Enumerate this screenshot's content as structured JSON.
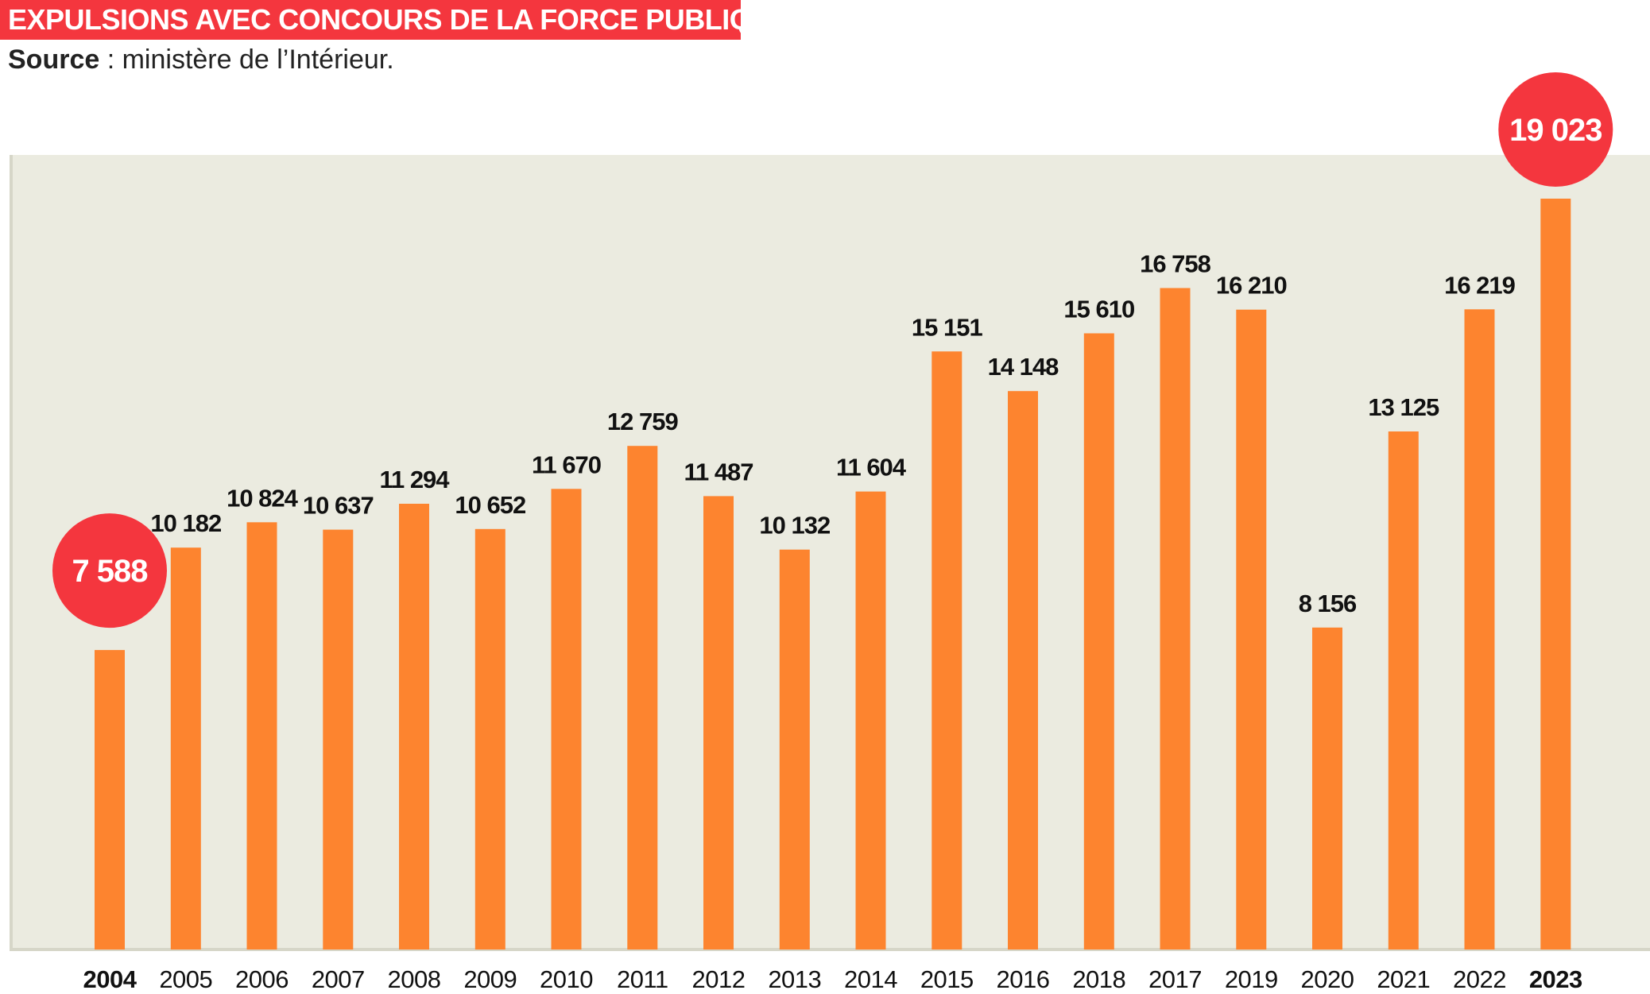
{
  "title": "EXPULSIONS AVEC CONCOURS DE LA FORCE PUBLIQUE",
  "source_label": "Source",
  "source_sep": " : ",
  "source_text": "ministère de l’Intérieur.",
  "colors": {
    "title_bg": "#f4363e",
    "bar": "#fd842f",
    "plot_bg": "#ebebe0",
    "highlight_circle": "#f4363e"
  },
  "chart_data": {
    "type": "bar",
    "categories": [
      "2004",
      "2005",
      "2006",
      "2007",
      "2008",
      "2009",
      "2010",
      "2011",
      "2012",
      "2013",
      "2014",
      "2015",
      "2016",
      "2018",
      "2017",
      "2019",
      "2020",
      "2021",
      "2022",
      "2023"
    ],
    "values": [
      7588,
      10182,
      10824,
      10637,
      11294,
      10652,
      11670,
      12759,
      11487,
      10132,
      11604,
      15151,
      14148,
      15610,
      16758,
      16210,
      8156,
      13125,
      16219,
      19023
    ],
    "value_labels": [
      "7 588",
      "10 182",
      "10 824",
      "10 637",
      "11 294",
      "10 652",
      "11 670",
      "12 759",
      "11 487",
      "10 132",
      "11 604",
      "15 151",
      "14 148",
      "15 610",
      "16 758",
      "16 210",
      "8 156",
      "13 125",
      "16 219",
      "19 023"
    ],
    "highlighted": [
      "2004",
      "2023"
    ],
    "ylim": [
      0,
      19023
    ],
    "grid": false,
    "legend": "none"
  }
}
